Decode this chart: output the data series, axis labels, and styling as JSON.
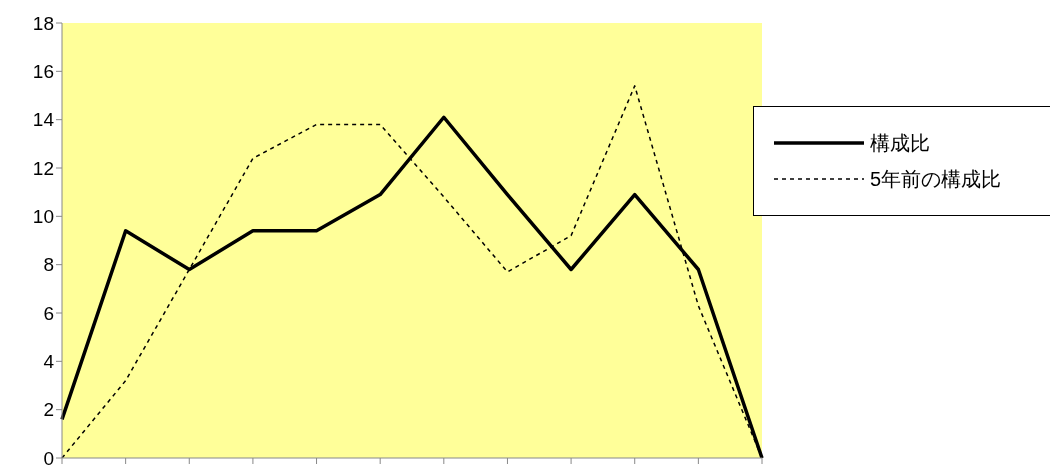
{
  "chart_data": {
    "type": "line",
    "categories": [
      null,
      null,
      null,
      null,
      null,
      null,
      null,
      null,
      null,
      null,
      null,
      null
    ],
    "series": [
      {
        "name": "構成比",
        "color": "#000000",
        "line_style": "solid",
        "values": [
          1.6,
          9.4,
          7.8,
          9.4,
          9.4,
          10.9,
          14.1,
          10.9,
          7.8,
          10.9,
          7.8,
          0
        ]
      },
      {
        "name": "5年前の構成比",
        "color": "#000000",
        "line_style": "dashed",
        "values": [
          0,
          3.2,
          7.8,
          12.4,
          13.8,
          13.8,
          10.8,
          7.7,
          9.2,
          15.4,
          6.3,
          0
        ]
      }
    ],
    "ylim": [
      0,
      18
    ],
    "yticks": [
      0,
      2,
      4,
      6,
      8,
      10,
      12,
      14,
      16,
      18
    ],
    "grid": false,
    "legend": "right",
    "marker": "none"
  }
}
